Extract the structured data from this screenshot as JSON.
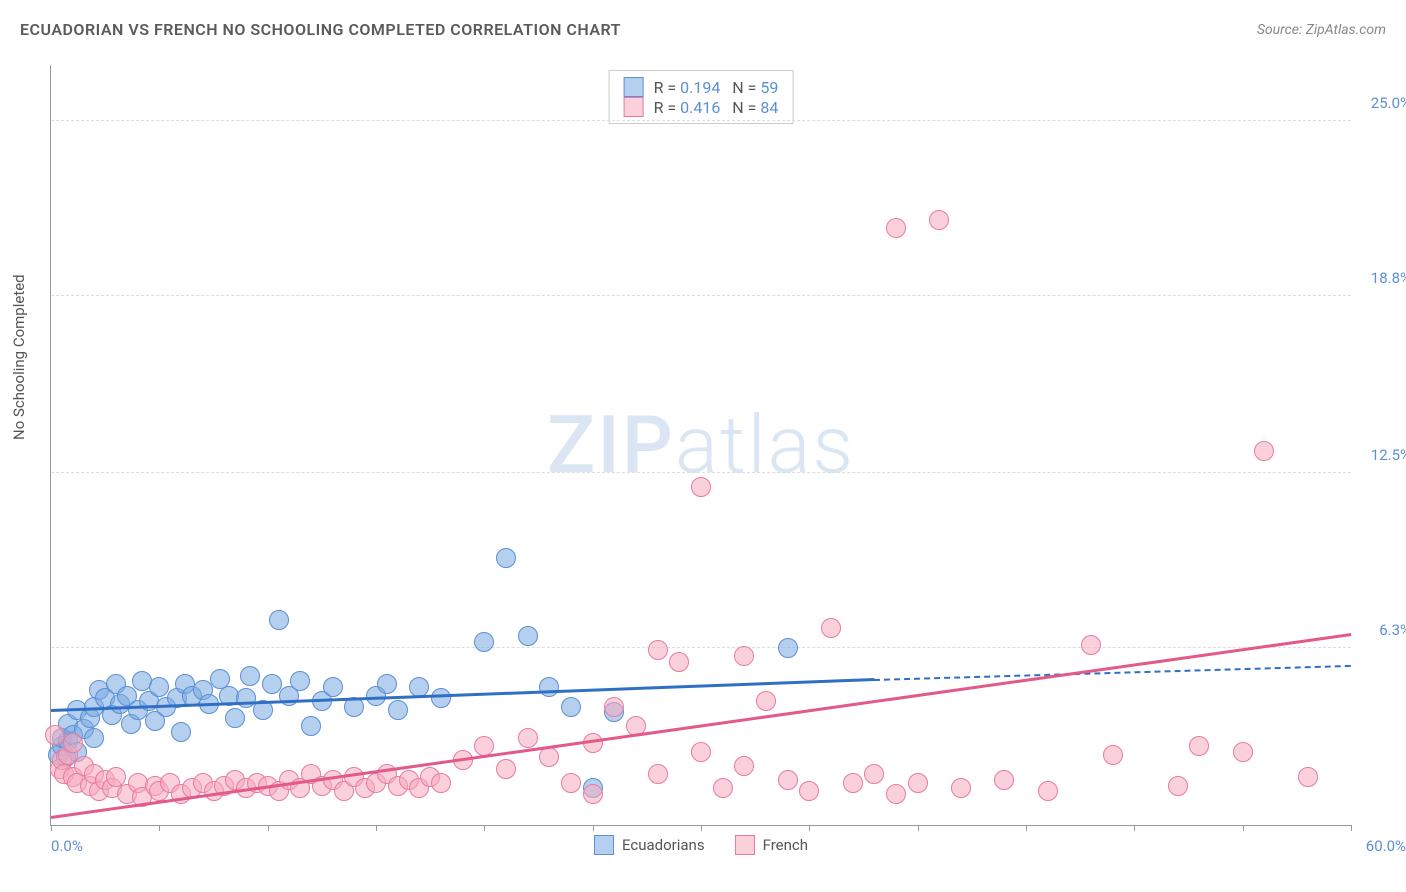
{
  "title": "ECUADORIAN VS FRENCH NO SCHOOLING COMPLETED CORRELATION CHART",
  "source": "Source: ZipAtlas.com",
  "ylabel": "No Schooling Completed",
  "watermark_bold": "ZIP",
  "watermark_light": "atlas",
  "chart": {
    "type": "scatter",
    "xlim": [
      0,
      60
    ],
    "ylim": [
      0,
      27
    ],
    "x_min_label": "0.0%",
    "x_max_label": "60.0%",
    "y_grid": [
      {
        "v": 6.3,
        "label": "6.3%"
      },
      {
        "v": 12.5,
        "label": "12.5%"
      },
      {
        "v": 18.8,
        "label": "18.8%"
      },
      {
        "v": 25.0,
        "label": "25.0%"
      }
    ],
    "x_ticks": [
      0,
      5,
      10,
      15,
      20,
      25,
      30,
      35,
      40,
      45,
      50,
      55,
      60
    ],
    "background_color": "#ffffff",
    "grid_color": "#dddddd",
    "axis_color": "#999999",
    "marker_radius": 9,
    "series": [
      {
        "name": "Ecuadorians",
        "fill": "rgba(120,170,225,0.55)",
        "stroke": "#5b8fd6",
        "R": "0.194",
        "N": "59",
        "trend": {
          "x0": 0,
          "y0": 4.0,
          "x1": 38,
          "y1": 5.1,
          "ext_x": 60,
          "ext_y": 5.6,
          "color": "#2f6fc4"
        },
        "points": [
          [
            0.3,
            2.5
          ],
          [
            0.5,
            2.8
          ],
          [
            0.5,
            3.1
          ],
          [
            0.7,
            2.4
          ],
          [
            0.8,
            3.0
          ],
          [
            0.8,
            3.6
          ],
          [
            1.0,
            3.2
          ],
          [
            1.2,
            2.6
          ],
          [
            1.2,
            4.1
          ],
          [
            1.5,
            3.4
          ],
          [
            1.8,
            3.8
          ],
          [
            2.0,
            4.2
          ],
          [
            2.0,
            3.1
          ],
          [
            2.2,
            4.8
          ],
          [
            2.5,
            4.5
          ],
          [
            2.8,
            3.9
          ],
          [
            3.0,
            5.0
          ],
          [
            3.2,
            4.3
          ],
          [
            3.5,
            4.6
          ],
          [
            3.7,
            3.6
          ],
          [
            4.0,
            4.1
          ],
          [
            4.2,
            5.1
          ],
          [
            4.5,
            4.4
          ],
          [
            4.8,
            3.7
          ],
          [
            5.0,
            4.9
          ],
          [
            5.3,
            4.2
          ],
          [
            5.8,
            4.5
          ],
          [
            6.0,
            3.3
          ],
          [
            6.2,
            5.0
          ],
          [
            6.5,
            4.6
          ],
          [
            7.0,
            4.8
          ],
          [
            7.3,
            4.3
          ],
          [
            7.8,
            5.2
          ],
          [
            8.2,
            4.6
          ],
          [
            8.5,
            3.8
          ],
          [
            9.0,
            4.5
          ],
          [
            9.2,
            5.3
          ],
          [
            9.8,
            4.1
          ],
          [
            10.2,
            5.0
          ],
          [
            10.5,
            7.3
          ],
          [
            11.0,
            4.6
          ],
          [
            11.5,
            5.1
          ],
          [
            12.0,
            3.5
          ],
          [
            12.5,
            4.4
          ],
          [
            13,
            4.9
          ],
          [
            14,
            4.2
          ],
          [
            15,
            4.6
          ],
          [
            15.5,
            5.0
          ],
          [
            16,
            4.1
          ],
          [
            17,
            4.9
          ],
          [
            18,
            4.5
          ],
          [
            20,
            6.5
          ],
          [
            21,
            9.5
          ],
          [
            22,
            6.7
          ],
          [
            23,
            4.9
          ],
          [
            24,
            4.2
          ],
          [
            25,
            1.3
          ],
          [
            26,
            4.0
          ],
          [
            34,
            6.3
          ]
        ]
      },
      {
        "name": "French",
        "fill": "rgba(245,170,190,0.55)",
        "stroke": "#e87ba0",
        "R": "0.416",
        "N": "84",
        "trend": {
          "x0": 0,
          "y0": 0.2,
          "x1": 60,
          "y1": 6.7,
          "color": "#e25a8a"
        },
        "points": [
          [
            0.2,
            3.2
          ],
          [
            0.4,
            2.0
          ],
          [
            0.5,
            2.3
          ],
          [
            0.6,
            1.8
          ],
          [
            0.8,
            2.5
          ],
          [
            1.0,
            1.7
          ],
          [
            1.0,
            2.9
          ],
          [
            1.2,
            1.5
          ],
          [
            1.5,
            2.1
          ],
          [
            1.8,
            1.4
          ],
          [
            2.0,
            1.8
          ],
          [
            2.2,
            1.2
          ],
          [
            2.5,
            1.6
          ],
          [
            2.8,
            1.3
          ],
          [
            3.0,
            1.7
          ],
          [
            3.5,
            1.1
          ],
          [
            4.0,
            1.5
          ],
          [
            4.2,
            1.0
          ],
          [
            4.8,
            1.4
          ],
          [
            5.0,
            1.2
          ],
          [
            5.5,
            1.5
          ],
          [
            6.0,
            1.1
          ],
          [
            6.5,
            1.3
          ],
          [
            7.0,
            1.5
          ],
          [
            7.5,
            1.2
          ],
          [
            8.0,
            1.4
          ],
          [
            8.5,
            1.6
          ],
          [
            9.0,
            1.3
          ],
          [
            9.5,
            1.5
          ],
          [
            10,
            1.4
          ],
          [
            10.5,
            1.2
          ],
          [
            11,
            1.6
          ],
          [
            11.5,
            1.3
          ],
          [
            12,
            1.8
          ],
          [
            12.5,
            1.4
          ],
          [
            13,
            1.6
          ],
          [
            13.5,
            1.2
          ],
          [
            14,
            1.7
          ],
          [
            14.5,
            1.3
          ],
          [
            15,
            1.5
          ],
          [
            15.5,
            1.8
          ],
          [
            16,
            1.4
          ],
          [
            16.5,
            1.6
          ],
          [
            17,
            1.3
          ],
          [
            17.5,
            1.7
          ],
          [
            18,
            1.5
          ],
          [
            19,
            2.3
          ],
          [
            20,
            2.8
          ],
          [
            21,
            2.0
          ],
          [
            22,
            3.1
          ],
          [
            23,
            2.4
          ],
          [
            24,
            1.5
          ],
          [
            25,
            2.9
          ],
          [
            25,
            1.1
          ],
          [
            26,
            4.2
          ],
          [
            27,
            3.5
          ],
          [
            28,
            6.2
          ],
          [
            28,
            1.8
          ],
          [
            29,
            5.8
          ],
          [
            30,
            2.6
          ],
          [
            30,
            12.0
          ],
          [
            31,
            1.3
          ],
          [
            32,
            6.0
          ],
          [
            32,
            2.1
          ],
          [
            33,
            4.4
          ],
          [
            34,
            1.6
          ],
          [
            35,
            1.2
          ],
          [
            36,
            7.0
          ],
          [
            37,
            1.5
          ],
          [
            38,
            1.8
          ],
          [
            39,
            21.2
          ],
          [
            39,
            1.1
          ],
          [
            40,
            1.5
          ],
          [
            41,
            21.5
          ],
          [
            42,
            1.3
          ],
          [
            44,
            1.6
          ],
          [
            46,
            1.2
          ],
          [
            48,
            6.4
          ],
          [
            49,
            2.5
          ],
          [
            52,
            1.4
          ],
          [
            53,
            2.8
          ],
          [
            55,
            2.6
          ],
          [
            56,
            13.3
          ],
          [
            58,
            1.7
          ]
        ]
      }
    ]
  },
  "legend_text": {
    "R_label": "R =",
    "N_label": "N ="
  }
}
